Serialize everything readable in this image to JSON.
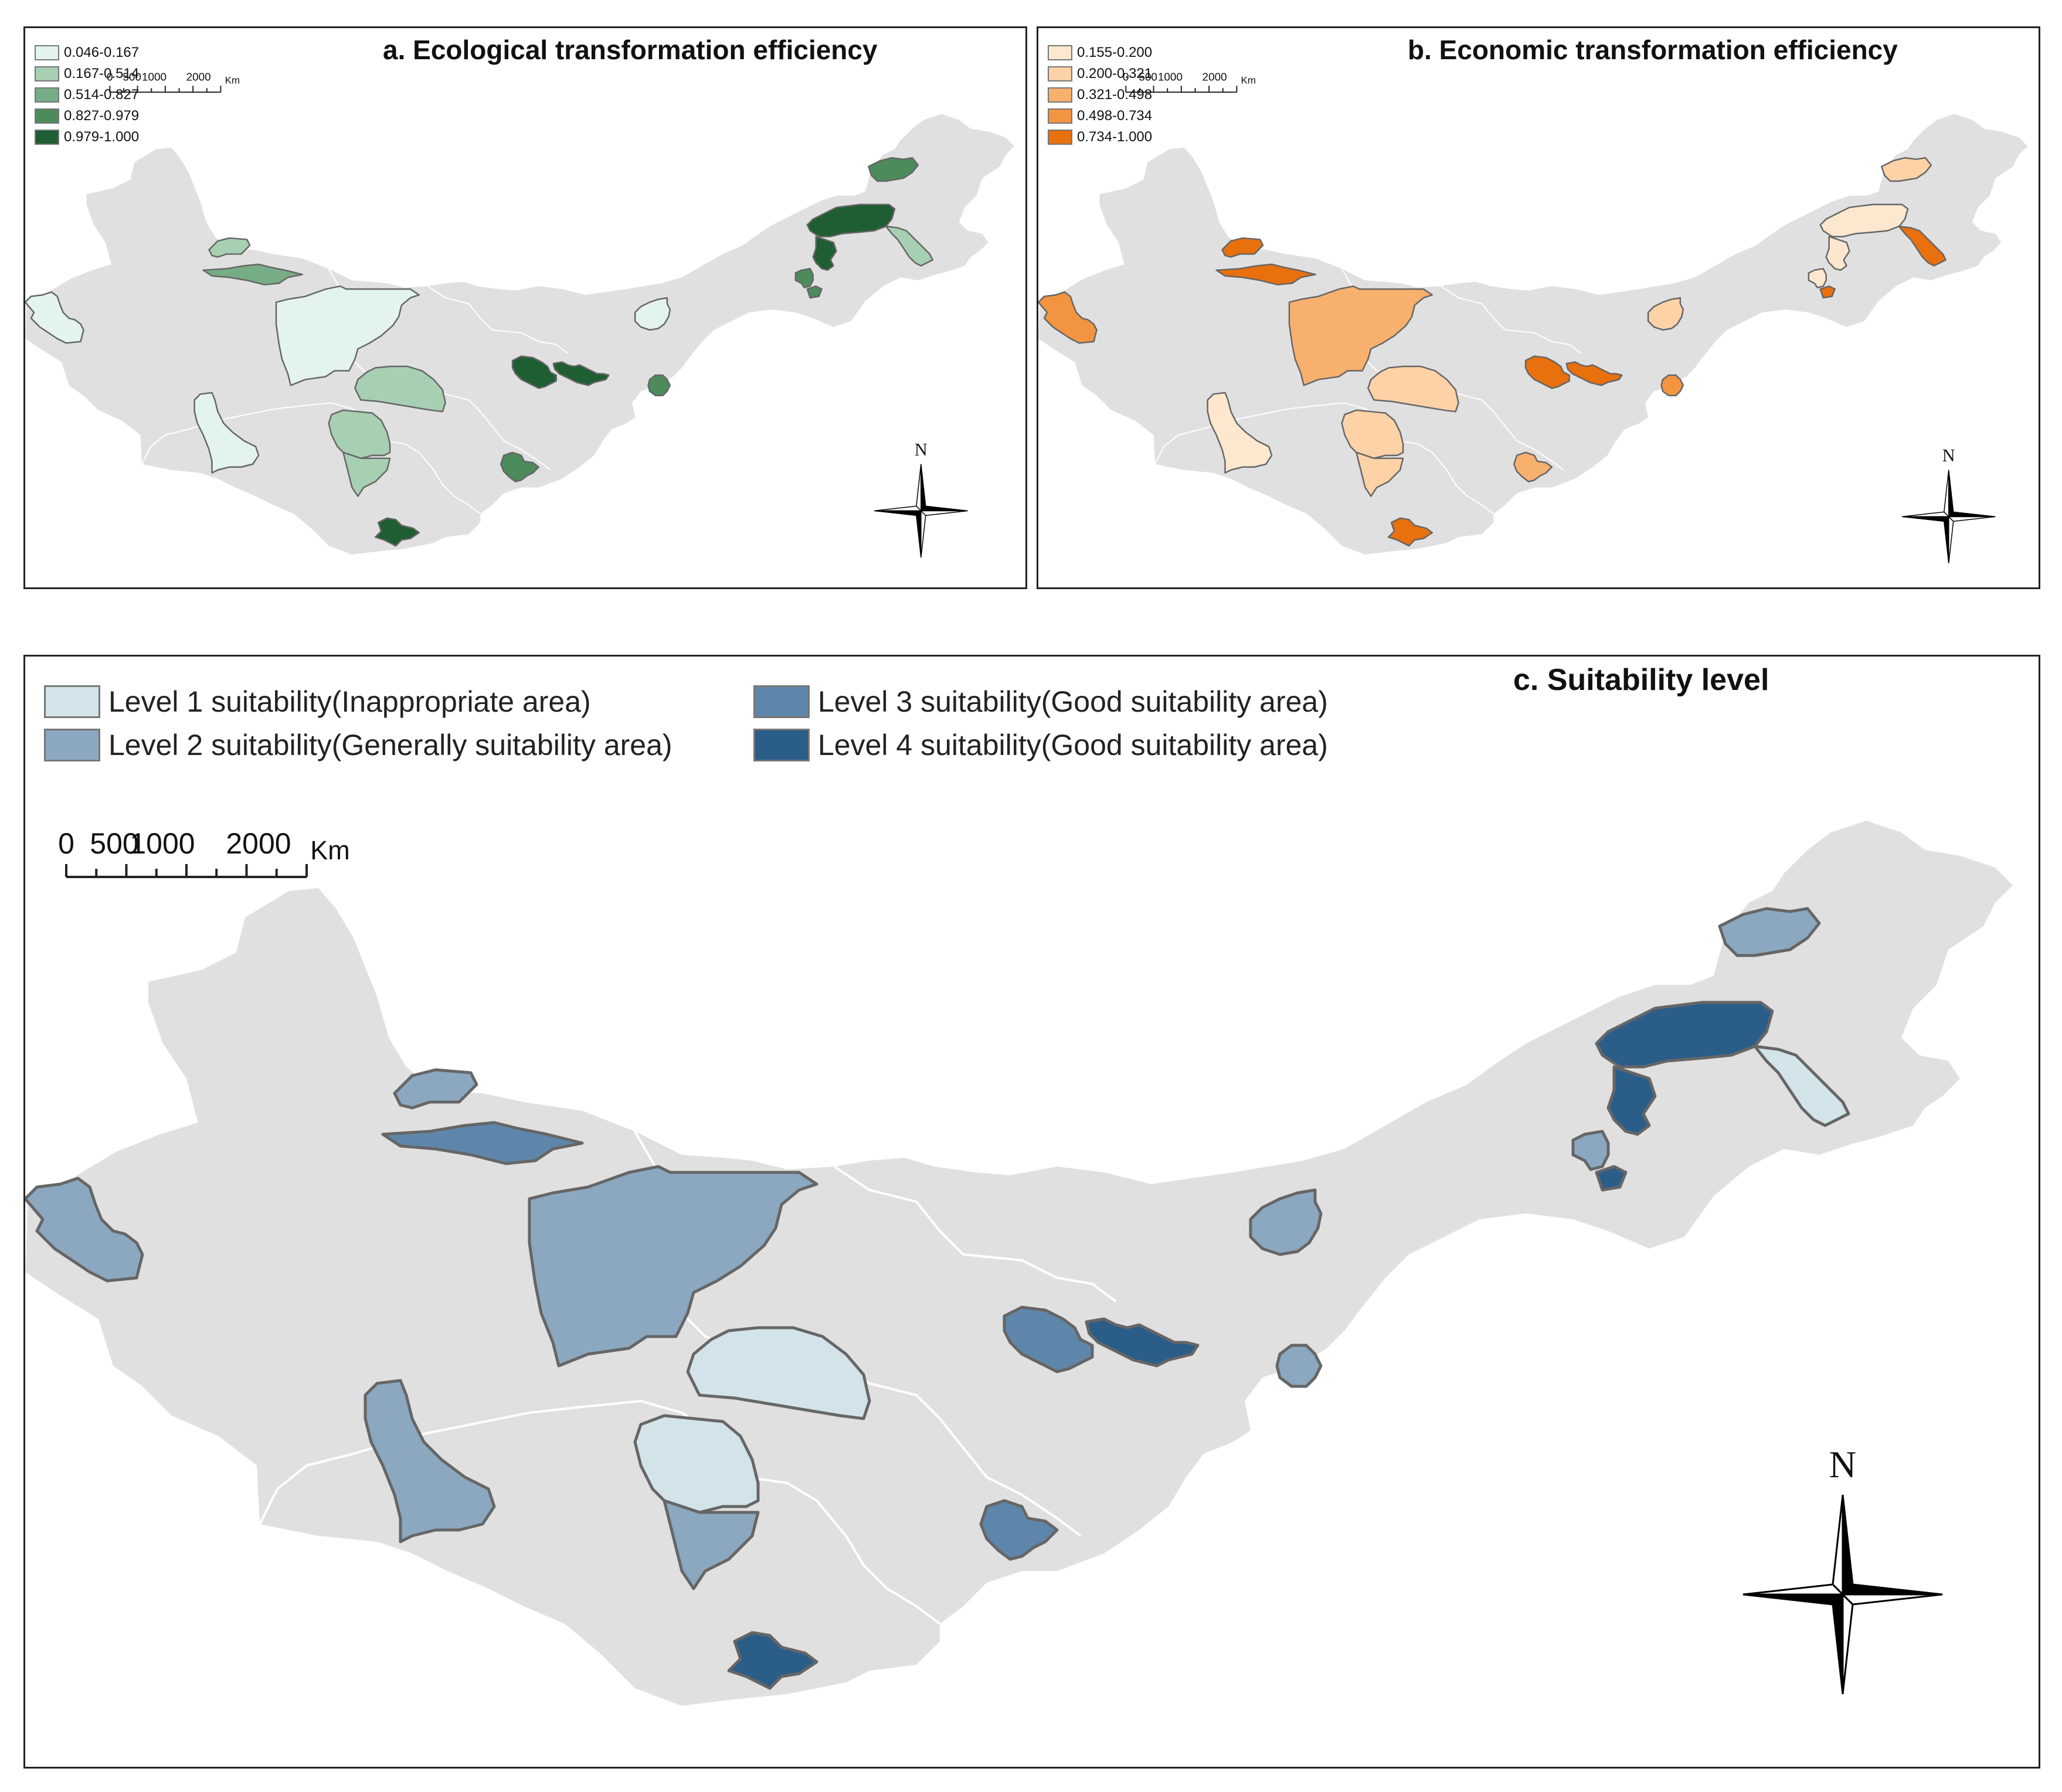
{
  "panels": {
    "a": {
      "title": "a. Ecological transformation efficiency",
      "legend": [
        {
          "label": "0.046-0.167",
          "color": "#e2f4ec"
        },
        {
          "label": "0.167-0.514",
          "color": "#a7cfb2"
        },
        {
          "label": "0.514-0.827",
          "color": "#76ad86"
        },
        {
          "label": "0.827-0.979",
          "color": "#4d8a5c"
        },
        {
          "label": "0.979-1.000",
          "color": "#1f5e33"
        }
      ]
    },
    "b": {
      "title": "b. Economic transformation efficiency",
      "legend": [
        {
          "label": "0.155-0.200",
          "color": "#fde8cf"
        },
        {
          "label": "0.200-0.321",
          "color": "#fcd2a6"
        },
        {
          "label": "0.321-0.498",
          "color": "#f8b06e"
        },
        {
          "label": "0.498-0.734",
          "color": "#f29440"
        },
        {
          "label": "0.734-1.000",
          "color": "#e8700d"
        }
      ]
    },
    "c": {
      "title": "c. Suitability level",
      "legend": [
        {
          "label": "Level 1 suitability(Inappropriate area)",
          "color": "#d3e3ea"
        },
        {
          "label": "Level 2 suitability(Generally suitability area)",
          "color": "#8ba8c0"
        },
        {
          "label": "Level 3 suitability(Good suitability area)",
          "color": "#5e86aa"
        },
        {
          "label": "Level 4 suitability(Good suitability area)",
          "color": "#2b5d89"
        }
      ]
    }
  },
  "scale_bar": {
    "ticks": [
      "0",
      "500",
      "1000",
      "2000"
    ],
    "unit": "Km"
  },
  "north_label": "N",
  "colors": {
    "base_map": "#e0e0e0",
    "region_outline": "#666666",
    "internal_boundary": "#ffffff"
  }
}
